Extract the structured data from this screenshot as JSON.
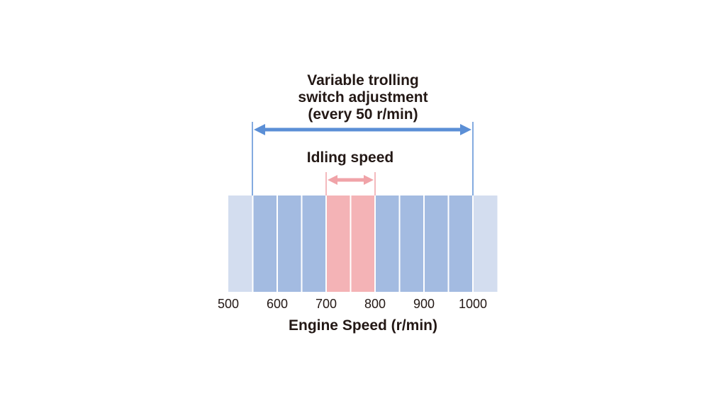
{
  "title_lines": [
    "Variable trolling",
    "switch adjustment",
    "(every 50 r/min)"
  ],
  "idling_label": "Idling speed",
  "axis_label": "Engine Speed (r/min)",
  "tick_labels": [
    "500",
    "600",
    "700",
    "800",
    "900",
    "1000"
  ]
}
